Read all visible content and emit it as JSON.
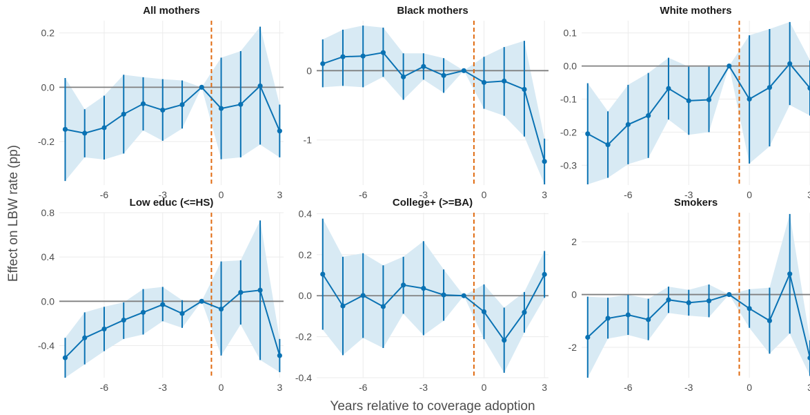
{
  "figure": {
    "ylabel": "Effect on LBW rate (pp)",
    "xlabel": "Years relative to coverage adoption"
  },
  "colors": {
    "point_line": "#0a72b3",
    "ribbon": "#d8eaf4",
    "zero_line": "#7f7f7f",
    "event_line": "#e06a10",
    "grid": "#ebebeb"
  },
  "chart_data": [
    {
      "type": "line",
      "title": "All mothers",
      "x": [
        -8,
        -7,
        -6,
        -5,
        -4,
        -3,
        -2,
        -1,
        0,
        1,
        2,
        3
      ],
      "xlim": [
        -8.3,
        3.2
      ],
      "xticks": [
        -6,
        -3,
        0,
        3
      ],
      "xtick_labels": [
        "-6",
        "-3",
        "0",
        "3"
      ],
      "event_line_x": -0.5,
      "series": [
        {
          "estimate": [
            -0.155,
            -0.169,
            -0.149,
            -0.099,
            -0.061,
            -0.084,
            -0.064,
            0.0,
            -0.078,
            -0.063,
            0.005,
            -0.161
          ],
          "ci_low": [
            -0.345,
            -0.258,
            -0.266,
            -0.244,
            -0.159,
            -0.197,
            -0.152,
            0.0,
            -0.265,
            -0.258,
            -0.211,
            -0.258
          ],
          "ci_high": [
            0.034,
            -0.081,
            -0.031,
            0.046,
            0.037,
            0.03,
            0.025,
            0.0,
            0.109,
            0.133,
            0.223,
            -0.064
          ]
        }
      ],
      "ylim": [
        -0.36,
        0.245
      ],
      "yticks": [
        -0.2,
        0.0,
        0.2
      ],
      "ytick_labels": [
        "-0.2",
        "0.0",
        "0.2"
      ],
      "grid": true
    },
    {
      "type": "line",
      "title": "Black mothers",
      "x": [
        -8,
        -7,
        -6,
        -5,
        -4,
        -3,
        -2,
        -1,
        0,
        1,
        2,
        3
      ],
      "xlim": [
        -8.3,
        3.2
      ],
      "xticks": [
        -6,
        -3,
        0,
        3
      ],
      "xtick_labels": [
        "-6",
        "-3",
        "0",
        "3"
      ],
      "event_line_x": -0.5,
      "series": [
        {
          "estimate": [
            0.1,
            0.2,
            0.21,
            0.26,
            -0.09,
            0.06,
            -0.07,
            0.0,
            -0.17,
            -0.15,
            -0.27,
            -1.31
          ],
          "ci_low": [
            -0.24,
            -0.22,
            -0.24,
            -0.09,
            -0.42,
            -0.13,
            -0.32,
            0.0,
            -0.55,
            -0.65,
            -0.95,
            -1.64
          ],
          "ci_high": [
            0.45,
            0.59,
            0.65,
            0.62,
            0.25,
            0.25,
            0.18,
            0.0,
            0.2,
            0.34,
            0.43,
            -0.98
          ]
        }
      ],
      "ylim": [
        -1.65,
        0.72
      ],
      "yticks": [
        -1,
        0
      ],
      "ytick_labels": [
        "-1",
        "0"
      ],
      "grid": true
    },
    {
      "type": "line",
      "title": "White mothers",
      "x": [
        -8,
        -7,
        -6,
        -5,
        -4,
        -3,
        -2,
        -1,
        0,
        1,
        2,
        3
      ],
      "xlim": [
        -8.3,
        3.0
      ],
      "xticks": [
        -6,
        -3,
        0,
        3
      ],
      "xtick_labels": [
        "-6",
        "-3",
        "0",
        "3"
      ],
      "event_line_x": -0.5,
      "series": [
        {
          "estimate": [
            -0.205,
            -0.238,
            -0.177,
            -0.15,
            -0.068,
            -0.105,
            -0.102,
            0.0,
            -0.1,
            -0.065,
            0.007,
            -0.067
          ],
          "ci_low": [
            -0.358,
            -0.338,
            -0.297,
            -0.278,
            -0.162,
            -0.208,
            -0.2,
            0.0,
            -0.295,
            -0.243,
            -0.118,
            -0.15
          ],
          "ci_high": [
            -0.052,
            -0.137,
            -0.057,
            -0.021,
            0.025,
            -0.002,
            -0.002,
            0.0,
            0.093,
            0.112,
            0.133,
            0.017
          ]
        }
      ],
      "ylim": [
        -0.36,
        0.137
      ],
      "yticks": [
        -0.3,
        -0.2,
        -0.1,
        0.0,
        0.1
      ],
      "ytick_labels": [
        "-0.3",
        "-0.2",
        "-0.1",
        "0.0",
        "0.1"
      ],
      "grid": true
    },
    {
      "type": "line",
      "title": "Low educ (<=HS)",
      "x": [
        -8,
        -7,
        -6,
        -5,
        -4,
        -3,
        -2,
        -1,
        0,
        1,
        2,
        3
      ],
      "xlim": [
        -8.3,
        3.2
      ],
      "xticks": [
        -6,
        -3,
        0,
        3
      ],
      "xtick_labels": [
        "-6",
        "-3",
        "0",
        "3"
      ],
      "event_line_x": -0.5,
      "series": [
        {
          "estimate": [
            -0.51,
            -0.33,
            -0.25,
            -0.17,
            -0.1,
            -0.03,
            -0.11,
            0.0,
            -0.07,
            0.08,
            0.1,
            -0.49
          ],
          "ci_low": [
            -0.69,
            -0.57,
            -0.45,
            -0.34,
            -0.3,
            -0.18,
            -0.24,
            0.0,
            -0.49,
            -0.21,
            -0.53,
            -0.64
          ],
          "ci_high": [
            -0.33,
            -0.1,
            -0.05,
            -0.01,
            0.11,
            0.13,
            0.01,
            0.0,
            0.36,
            0.37,
            0.73,
            -0.34
          ]
        }
      ],
      "ylim": [
        -0.69,
        0.8
      ],
      "yticks": [
        -0.4,
        0.0,
        0.4,
        0.8
      ],
      "ytick_labels": [
        "-0.4",
        "0.0",
        "0.4",
        "0.8"
      ],
      "grid": true
    },
    {
      "type": "line",
      "title": "College+ (>=BA)",
      "x": [
        -8,
        -7,
        -6,
        -5,
        -4,
        -3,
        -2,
        -1,
        0,
        1,
        2,
        3
      ],
      "xlim": [
        -8.3,
        3.2
      ],
      "xticks": [
        -6,
        -3,
        0,
        3
      ],
      "xtick_labels": [
        "-6",
        "-3",
        "0",
        "3"
      ],
      "event_line_x": -0.5,
      "series": [
        {
          "estimate": [
            0.105,
            -0.05,
            0.001,
            -0.053,
            0.052,
            0.036,
            0.004,
            0.0,
            -0.078,
            -0.217,
            -0.081,
            0.104
          ],
          "ci_low": [
            -0.166,
            -0.29,
            -0.206,
            -0.255,
            -0.088,
            -0.193,
            -0.122,
            0.0,
            -0.212,
            -0.376,
            -0.18,
            -0.01
          ],
          "ci_high": [
            0.376,
            0.19,
            0.207,
            0.148,
            0.19,
            0.266,
            0.128,
            0.0,
            0.055,
            -0.058,
            0.018,
            0.218
          ]
        }
      ],
      "ylim": [
        -0.4,
        0.405
      ],
      "yticks": [
        -0.4,
        -0.2,
        0.0,
        0.2,
        0.4
      ],
      "ytick_labels": [
        "-0.4",
        "-0.2",
        "0.0",
        "0.2",
        "0.4"
      ],
      "grid": true
    },
    {
      "type": "line",
      "title": "Smokers",
      "x": [
        -8,
        -7,
        -6,
        -5,
        -4,
        -3,
        -2,
        -1,
        0,
        1,
        2,
        3
      ],
      "xlim": [
        -8.3,
        3.0
      ],
      "xticks": [
        -6,
        -3,
        0,
        3
      ],
      "xtick_labels": [
        "-6",
        "-3",
        "0",
        "3"
      ],
      "event_line_x": -0.5,
      "series": [
        {
          "estimate": [
            -1.62,
            -0.9,
            -0.77,
            -0.95,
            -0.2,
            -0.31,
            -0.24,
            0.0,
            -0.53,
            -0.99,
            0.78,
            -2.4
          ],
          "ci_low": [
            -3.15,
            -1.67,
            -1.53,
            -1.73,
            -0.7,
            -0.8,
            -0.86,
            0.0,
            -1.26,
            -2.24,
            -1.48,
            -3.08
          ],
          "ci_high": [
            -0.08,
            -0.12,
            -0.01,
            -0.16,
            0.3,
            0.18,
            0.38,
            0.0,
            0.2,
            0.26,
            3.05,
            -1.73
          ]
        }
      ],
      "ylim": [
        -3.15,
        3.1
      ],
      "yticks": [
        -2,
        0,
        2
      ],
      "ytick_labels": [
        "-2",
        "0",
        "2"
      ],
      "grid": true
    }
  ]
}
